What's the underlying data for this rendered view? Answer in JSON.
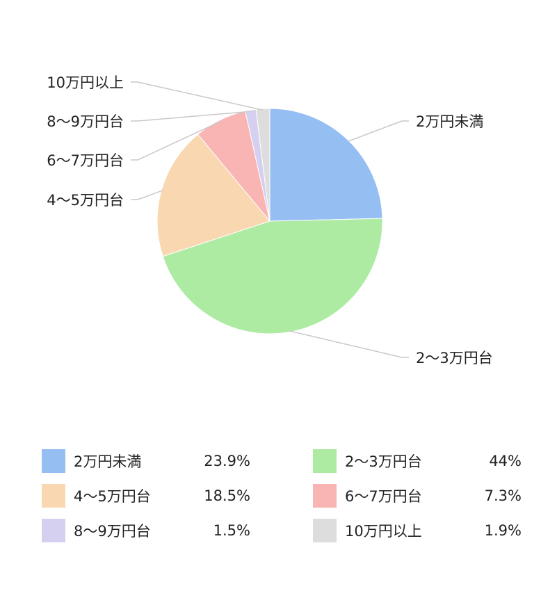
{
  "chart_data": {
    "type": "pie",
    "title": "",
    "unit": "%",
    "start_angle_deg": 0,
    "direction": "clockwise",
    "legend_position": "bottom",
    "slices": [
      {
        "label": "2万円未満",
        "value": 23.9,
        "value_label": "23.9%",
        "color": "#95BEF2"
      },
      {
        "label": "2～3万円台",
        "value": 44,
        "value_label": "44%",
        "color": "#ADEAA2"
      },
      {
        "label": "4～5万円台",
        "value": 18.5,
        "value_label": "18.5%",
        "color": "#F9D7B1"
      },
      {
        "label": "6～7万円台",
        "value": 7.3,
        "value_label": "7.3%",
        "color": "#F9B4B4"
      },
      {
        "label": "8～9万円台",
        "value": 1.5,
        "value_label": "1.5%",
        "color": "#D6D0F0"
      },
      {
        "label": "10万円以上",
        "value": 1.9,
        "value_label": "1.9%",
        "color": "#DDDDDD"
      }
    ]
  }
}
